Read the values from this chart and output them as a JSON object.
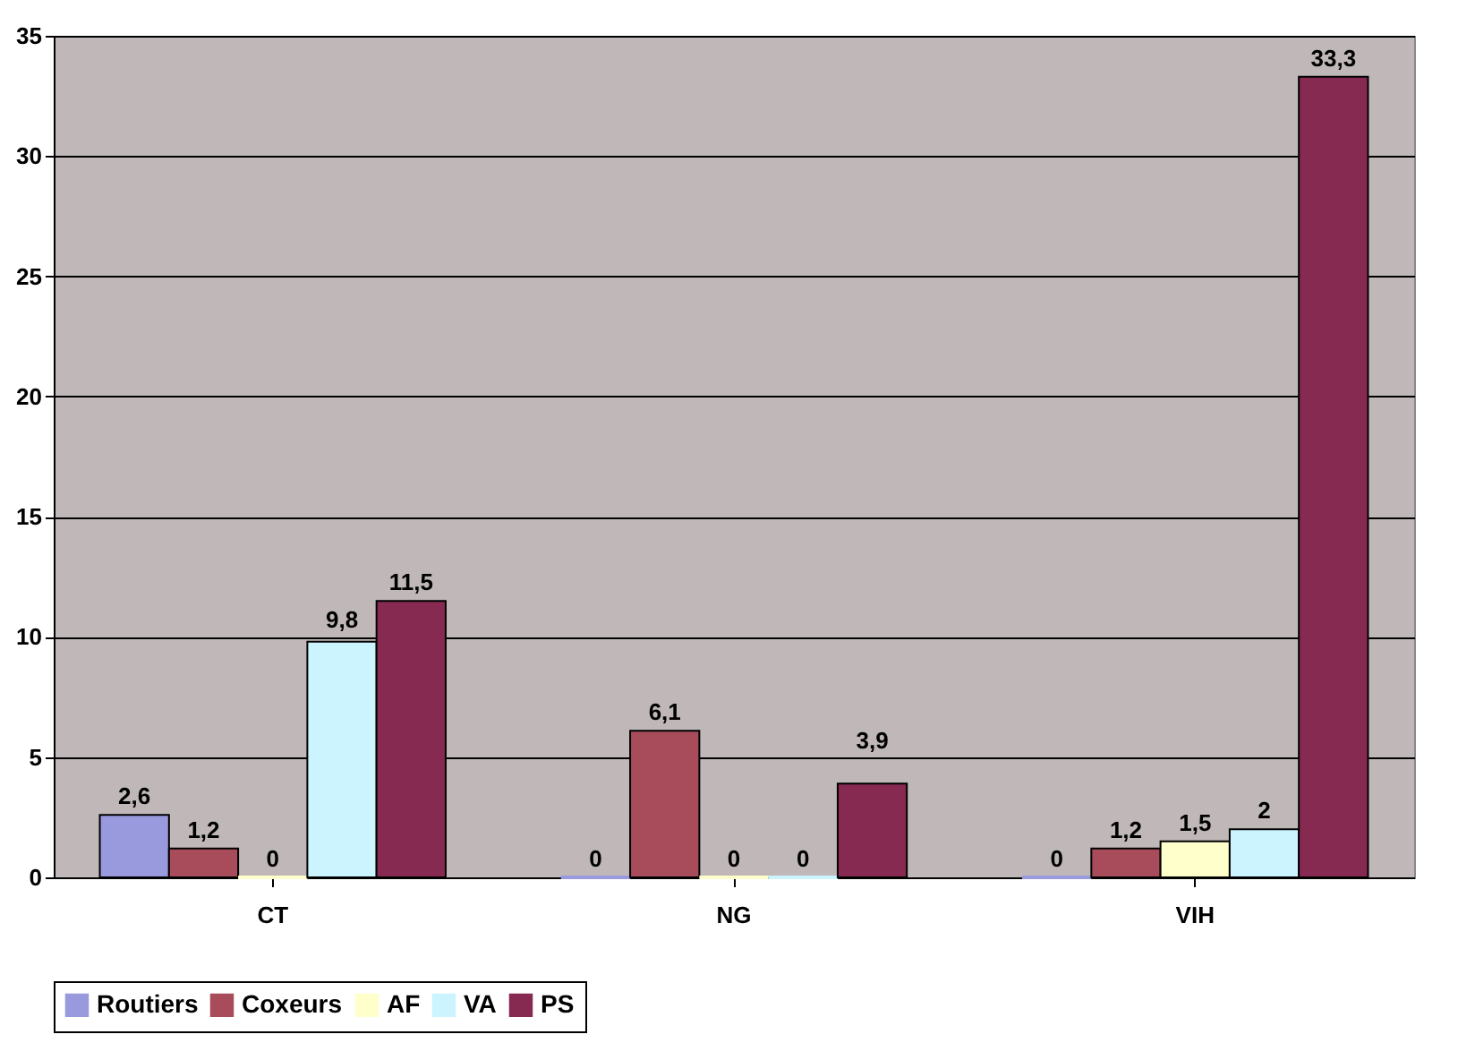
{
  "chart_data": {
    "type": "bar",
    "categories": [
      "CT",
      "NG",
      "VIH"
    ],
    "series": [
      {
        "name": "Routiers",
        "color": "#9999dd",
        "values": [
          2.6,
          0,
          0
        ],
        "value_labels": [
          "2,6",
          "0",
          "0"
        ]
      },
      {
        "name": "Coxeurs",
        "color": "#a84c5c",
        "values": [
          1.2,
          6.1,
          1.2
        ],
        "value_labels": [
          "1,2",
          "6,1",
          "1,2"
        ]
      },
      {
        "name": "AF",
        "color": "#ffffcc",
        "values": [
          0,
          0,
          1.5
        ],
        "value_labels": [
          "0",
          "0",
          "1,5"
        ]
      },
      {
        "name": "VA",
        "color": "#ccf4ff",
        "values": [
          9.8,
          0,
          2
        ],
        "value_labels": [
          "9,8",
          "0",
          "2"
        ]
      },
      {
        "name": "PS",
        "color": "#862a51",
        "values": [
          11.5,
          3.9,
          33.3
        ],
        "value_labels": [
          "11,5",
          "3,9",
          "33,3"
        ]
      }
    ],
    "ylim": [
      0,
      35
    ],
    "yticks": [
      0,
      5,
      10,
      15,
      20,
      25,
      30,
      35
    ],
    "grid": "y",
    "legend": "bottom"
  }
}
